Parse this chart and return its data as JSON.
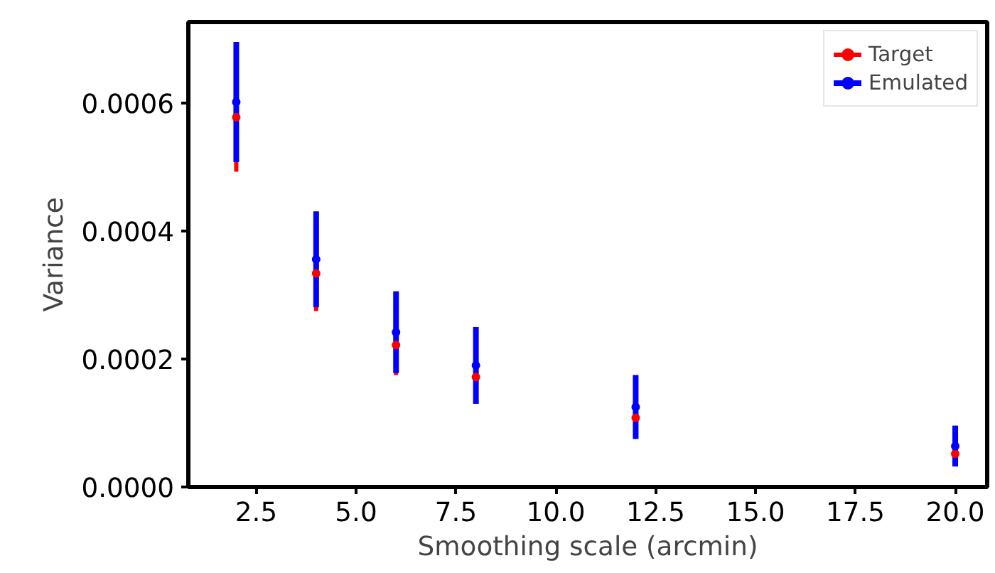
{
  "chart_data": {
    "type": "scatter",
    "xlabel": "Smoothing scale (arcmin)",
    "ylabel": "Variance",
    "x": [
      2,
      4,
      6,
      8,
      12,
      20
    ],
    "series": [
      {
        "name": "Target",
        "color": "#ff0000",
        "values": [
          0.000578,
          0.000334,
          0.000222,
          0.000172,
          0.000108,
          5.2e-05
        ],
        "errors": [
          8.5e-05,
          5.9e-05,
          4.7e-05,
          null,
          null,
          null
        ]
      },
      {
        "name": "Emulated",
        "color": "#0000ff",
        "values": [
          0.000602,
          0.000356,
          0.000242,
          0.00019,
          0.000125,
          6.4e-05
        ],
        "errors": [
          9.4e-05,
          7.5e-05,
          6.4e-05,
          6e-05,
          5e-05,
          3.2e-05
        ]
      }
    ],
    "xlim": [
      0.8,
      20.8
    ],
    "ylim": [
      0,
      0.000727
    ],
    "xticks": [
      {
        "value": 2.5,
        "label": "2.5"
      },
      {
        "value": 5,
        "label": "5.0"
      },
      {
        "value": 7.5,
        "label": "7.5"
      },
      {
        "value": 10,
        "label": "10.0"
      },
      {
        "value": 12.5,
        "label": "12.5"
      },
      {
        "value": 15,
        "label": "15.0"
      },
      {
        "value": 17.5,
        "label": "17.5"
      },
      {
        "value": 20,
        "label": "20.0"
      }
    ],
    "yticks": [
      {
        "value": 0,
        "label": "0.0000"
      },
      {
        "value": 0.0002,
        "label": "0.0002"
      },
      {
        "value": 0.0004,
        "label": "0.0004"
      },
      {
        "value": 0.0006,
        "label": "0.0006"
      }
    ],
    "grid": false,
    "legend": "top right",
    "marker": "circle"
  }
}
